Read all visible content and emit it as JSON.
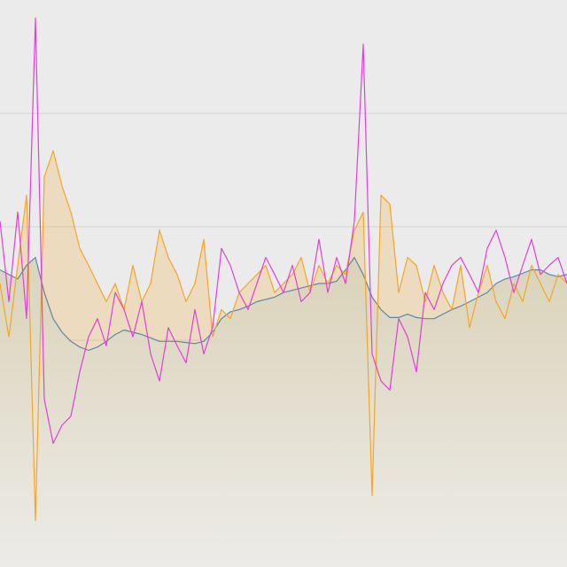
{
  "chart_data": {
    "type": "line",
    "x": [
      0,
      10,
      20,
      30,
      40,
      50,
      60,
      70,
      80,
      90,
      100,
      110,
      120,
      130,
      140,
      150,
      160,
      170,
      180,
      190,
      200,
      210,
      220,
      230,
      240,
      250,
      260,
      270,
      280,
      290,
      300,
      310,
      320,
      330,
      340,
      350,
      360,
      370,
      380,
      390,
      400,
      410,
      420,
      430,
      440,
      450,
      460,
      470,
      480,
      490,
      500,
      510,
      520,
      530,
      540,
      550,
      560,
      570,
      580,
      590,
      600,
      610,
      620,
      630,
      640
    ],
    "xlim": [
      0,
      640
    ],
    "ylim": [
      0,
      5
    ],
    "yticks": [
      1,
      2,
      3,
      4
    ],
    "grid": true,
    "series": [
      {
        "color": "#5b87a8",
        "fill": true,
        "values": [
          2.62,
          2.58,
          2.54,
          2.66,
          2.73,
          2.42,
          2.19,
          2.07,
          1.99,
          1.94,
          1.91,
          1.94,
          1.99,
          2.05,
          2.09,
          2.07,
          2.05,
          2.02,
          1.99,
          1.99,
          1.99,
          1.98,
          1.97,
          1.99,
          2.07,
          2.19,
          2.25,
          2.27,
          2.3,
          2.34,
          2.36,
          2.38,
          2.42,
          2.44,
          2.46,
          2.48,
          2.5,
          2.5,
          2.52,
          2.62,
          2.73,
          2.58,
          2.38,
          2.27,
          2.2,
          2.2,
          2.23,
          2.2,
          2.19,
          2.19,
          2.23,
          2.27,
          2.3,
          2.34,
          2.38,
          2.42,
          2.5,
          2.54,
          2.56,
          2.59,
          2.62,
          2.62,
          2.58,
          2.56,
          2.58
        ]
      },
      {
        "color": "#f5a623",
        "fill": true,
        "values": [
          2.5,
          2.03,
          2.66,
          3.28,
          0.41,
          3.44,
          3.67,
          3.36,
          3.13,
          2.81,
          2.66,
          2.5,
          2.34,
          2.5,
          2.27,
          2.66,
          2.34,
          2.5,
          2.97,
          2.73,
          2.58,
          2.34,
          2.5,
          2.89,
          2.03,
          2.27,
          2.19,
          2.42,
          2.5,
          2.58,
          2.66,
          2.42,
          2.5,
          2.58,
          2.73,
          2.42,
          2.66,
          2.5,
          2.66,
          2.58,
          2.97,
          3.13,
          0.63,
          3.28,
          3.2,
          2.42,
          2.73,
          2.66,
          2.34,
          2.66,
          2.42,
          2.27,
          2.66,
          2.11,
          2.42,
          2.66,
          2.34,
          2.19,
          2.5,
          2.34,
          2.66,
          2.5,
          2.34,
          2.58,
          2.5
        ]
      },
      {
        "color": "#e040d8",
        "fill": false,
        "values": [
          3.05,
          2.34,
          3.13,
          2.19,
          4.84,
          1.48,
          1.09,
          1.25,
          1.33,
          1.72,
          2.03,
          2.19,
          1.95,
          2.42,
          2.27,
          2.03,
          2.34,
          1.88,
          1.64,
          2.11,
          1.95,
          1.8,
          2.27,
          1.88,
          2.11,
          2.81,
          2.66,
          2.42,
          2.27,
          2.5,
          2.73,
          2.58,
          2.42,
          2.66,
          2.34,
          2.42,
          2.89,
          2.42,
          2.73,
          2.5,
          3.05,
          4.61,
          1.88,
          1.64,
          1.56,
          2.19,
          2.03,
          1.72,
          2.42,
          2.27,
          2.5,
          2.66,
          2.73,
          2.58,
          2.42,
          2.81,
          2.97,
          2.73,
          2.42,
          2.66,
          2.89,
          2.58,
          2.66,
          2.73,
          2.5
        ]
      }
    ]
  }
}
